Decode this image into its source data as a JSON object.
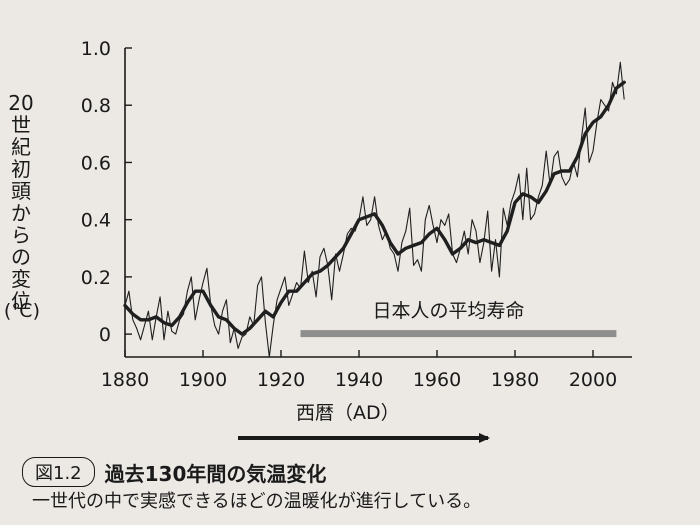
{
  "chart_data": {
    "type": "line",
    "ylabel": "20世紀初頭からの変位",
    "yunit": "(℃)",
    "xlabel": "西暦（AD）",
    "xlim": [
      1880,
      2010
    ],
    "ylim": [
      -0.08,
      1.0
    ],
    "xticks": [
      1880,
      1900,
      1920,
      1940,
      1960,
      1980,
      2000
    ],
    "yticks": [
      0,
      0.2,
      0.4,
      0.6,
      0.8,
      1.0
    ],
    "ytick_labels": [
      "0",
      "0.2",
      "0.4",
      "0.6",
      "0.8",
      "1.0"
    ],
    "series": [
      {
        "style": "annual",
        "x": [
          1880,
          1881,
          1882,
          1883,
          1884,
          1885,
          1886,
          1887,
          1888,
          1889,
          1890,
          1891,
          1892,
          1893,
          1894,
          1895,
          1896,
          1897,
          1898,
          1899,
          1900,
          1901,
          1902,
          1903,
          1904,
          1905,
          1906,
          1907,
          1908,
          1909,
          1910,
          1911,
          1912,
          1913,
          1914,
          1915,
          1916,
          1917,
          1918,
          1919,
          1920,
          1921,
          1922,
          1923,
          1924,
          1925,
          1926,
          1927,
          1928,
          1929,
          1930,
          1931,
          1932,
          1933,
          1934,
          1935,
          1936,
          1937,
          1938,
          1939,
          1940,
          1941,
          1942,
          1943,
          1944,
          1945,
          1946,
          1947,
          1948,
          1949,
          1950,
          1951,
          1952,
          1953,
          1954,
          1955,
          1956,
          1957,
          1958,
          1959,
          1960,
          1961,
          1962,
          1963,
          1964,
          1965,
          1966,
          1967,
          1968,
          1969,
          1970,
          1971,
          1972,
          1973,
          1974,
          1975,
          1976,
          1977,
          1978,
          1979,
          1980,
          1981,
          1982,
          1983,
          1984,
          1985,
          1986,
          1987,
          1988,
          1989,
          1990,
          1991,
          1992,
          1993,
          1994,
          1995,
          1996,
          1997,
          1998,
          1999,
          2000,
          2001,
          2002,
          2003,
          2004,
          2005,
          2006,
          2007,
          2008
        ],
        "y": [
          0.1,
          0.15,
          0.05,
          0.02,
          -0.02,
          0.03,
          0.08,
          -0.02,
          0.06,
          0.13,
          -0.02,
          0.08,
          0.01,
          0.0,
          0.05,
          0.07,
          0.15,
          0.2,
          0.05,
          0.12,
          0.18,
          0.23,
          0.1,
          0.03,
          0.0,
          0.08,
          0.12,
          -0.03,
          0.02,
          -0.05,
          -0.01,
          0.0,
          0.06,
          0.03,
          0.17,
          0.2,
          0.04,
          -0.08,
          0.03,
          0.12,
          0.16,
          0.2,
          0.1,
          0.14,
          0.18,
          0.16,
          0.29,
          0.18,
          0.22,
          0.13,
          0.27,
          0.3,
          0.24,
          0.12,
          0.28,
          0.22,
          0.28,
          0.35,
          0.37,
          0.36,
          0.4,
          0.48,
          0.38,
          0.4,
          0.48,
          0.38,
          0.33,
          0.36,
          0.3,
          0.28,
          0.22,
          0.32,
          0.36,
          0.44,
          0.24,
          0.26,
          0.22,
          0.4,
          0.45,
          0.38,
          0.32,
          0.4,
          0.38,
          0.42,
          0.28,
          0.25,
          0.3,
          0.36,
          0.28,
          0.4,
          0.36,
          0.25,
          0.32,
          0.43,
          0.22,
          0.33,
          0.2,
          0.44,
          0.38,
          0.46,
          0.5,
          0.56,
          0.4,
          0.58,
          0.4,
          0.42,
          0.48,
          0.52,
          0.64,
          0.52,
          0.62,
          0.64,
          0.55,
          0.52,
          0.54,
          0.6,
          0.55,
          0.68,
          0.79,
          0.6,
          0.64,
          0.74,
          0.82,
          0.8,
          0.78,
          0.88,
          0.84,
          0.95,
          0.82
        ]
      },
      {
        "style": "smoothed",
        "x": [
          1880,
          1882,
          1884,
          1886,
          1888,
          1890,
          1892,
          1894,
          1896,
          1898,
          1900,
          1902,
          1904,
          1906,
          1908,
          1910,
          1912,
          1914,
          1916,
          1918,
          1920,
          1922,
          1924,
          1926,
          1928,
          1930,
          1932,
          1934,
          1936,
          1938,
          1940,
          1942,
          1944,
          1946,
          1948,
          1950,
          1952,
          1954,
          1956,
          1958,
          1960,
          1962,
          1964,
          1966,
          1968,
          1970,
          1972,
          1974,
          1976,
          1978,
          1980,
          1982,
          1984,
          1986,
          1988,
          1990,
          1992,
          1994,
          1996,
          1998,
          2000,
          2002,
          2004,
          2006,
          2008
        ],
        "y": [
          0.1,
          0.07,
          0.05,
          0.05,
          0.06,
          0.04,
          0.03,
          0.06,
          0.11,
          0.15,
          0.15,
          0.1,
          0.06,
          0.05,
          0.02,
          0.0,
          0.02,
          0.05,
          0.08,
          0.06,
          0.11,
          0.15,
          0.15,
          0.18,
          0.21,
          0.22,
          0.24,
          0.27,
          0.3,
          0.35,
          0.4,
          0.41,
          0.42,
          0.38,
          0.32,
          0.28,
          0.3,
          0.31,
          0.32,
          0.35,
          0.37,
          0.33,
          0.28,
          0.3,
          0.33,
          0.32,
          0.33,
          0.32,
          0.31,
          0.36,
          0.46,
          0.49,
          0.48,
          0.46,
          0.5,
          0.56,
          0.57,
          0.57,
          0.62,
          0.7,
          0.74,
          0.76,
          0.8,
          0.86,
          0.88
        ]
      }
    ],
    "annotation": {
      "label": "日本人の平均寿命",
      "x_start": 1925,
      "x_end": 2006
    },
    "colors": {
      "line": "#1f1f1f",
      "band": "#8e8e8e",
      "axis": "#1a1a1a"
    }
  },
  "caption": {
    "figure_number": "図1.2",
    "title": "過去130年間の気温変化",
    "subtitle": "一世代の中で実感できるほどの温暖化が進行している。"
  }
}
